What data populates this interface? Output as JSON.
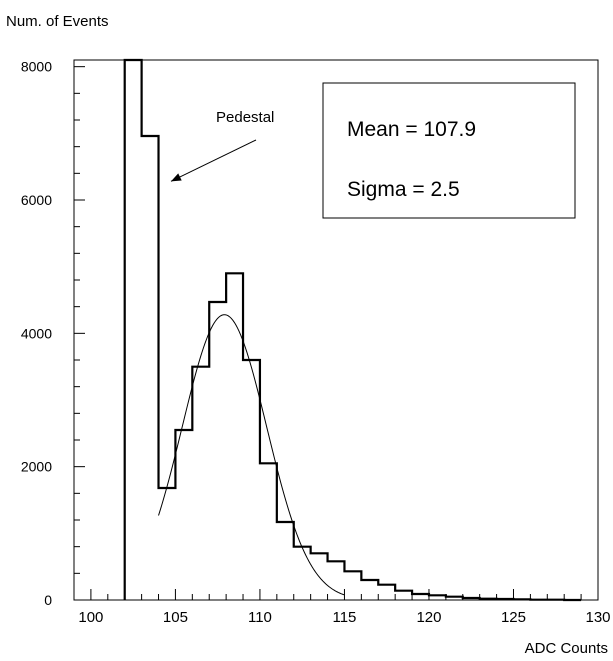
{
  "chart_data": {
    "type": "histogram",
    "title": "",
    "ylabel": "Num. of Events",
    "xlabel": "ADC Counts",
    "xlim": [
      99,
      130
    ],
    "ylim": [
      0,
      8100
    ],
    "x_ticks": [
      100,
      105,
      110,
      115,
      120,
      125,
      130
    ],
    "y_ticks": [
      0,
      2000,
      4000,
      6000,
      8000
    ],
    "bin_width": 1,
    "bins": [
      {
        "x0": 102,
        "x1": 103,
        "count": 8100
      },
      {
        "x0": 103,
        "x1": 104,
        "count": 6960
      },
      {
        "x0": 104,
        "x1": 105,
        "count": 1680
      },
      {
        "x0": 105,
        "x1": 106,
        "count": 2550
      },
      {
        "x0": 106,
        "x1": 107,
        "count": 3500
      },
      {
        "x0": 107,
        "x1": 108,
        "count": 4470
      },
      {
        "x0": 108,
        "x1": 109,
        "count": 4900
      },
      {
        "x0": 109,
        "x1": 110,
        "count": 3600
      },
      {
        "x0": 110,
        "x1": 111,
        "count": 2050
      },
      {
        "x0": 111,
        "x1": 112,
        "count": 1170
      },
      {
        "x0": 112,
        "x1": 113,
        "count": 800
      },
      {
        "x0": 113,
        "x1": 114,
        "count": 700
      },
      {
        "x0": 114,
        "x1": 115,
        "count": 580
      },
      {
        "x0": 115,
        "x1": 116,
        "count": 430
      },
      {
        "x0": 116,
        "x1": 117,
        "count": 300
      },
      {
        "x0": 117,
        "x1": 118,
        "count": 230
      },
      {
        "x0": 118,
        "x1": 119,
        "count": 140
      },
      {
        "x0": 119,
        "x1": 120,
        "count": 90
      },
      {
        "x0": 120,
        "x1": 121,
        "count": 70
      },
      {
        "x0": 121,
        "x1": 122,
        "count": 50
      },
      {
        "x0": 122,
        "x1": 123,
        "count": 30
      },
      {
        "x0": 123,
        "x1": 124,
        "count": 20
      },
      {
        "x0": 124,
        "x1": 125,
        "count": 15
      },
      {
        "x0": 125,
        "x1": 126,
        "count": 10
      },
      {
        "x0": 126,
        "x1": 127,
        "count": 5
      },
      {
        "x0": 127,
        "x1": 128,
        "count": 5
      },
      {
        "x0": 128,
        "x1": 129,
        "count": 0
      }
    ],
    "fit": {
      "type": "gaussian",
      "mean": 107.9,
      "sigma": 2.5,
      "amplitude": 4280,
      "x_range": [
        104,
        115
      ]
    },
    "stats_box": {
      "mean_text": "Mean = 107.9",
      "sigma_text": "Sigma = 2.5"
    },
    "annotation": {
      "text": "Pedestal",
      "arrow_to": {
        "x": 104.5,
        "y": 6250
      }
    }
  }
}
